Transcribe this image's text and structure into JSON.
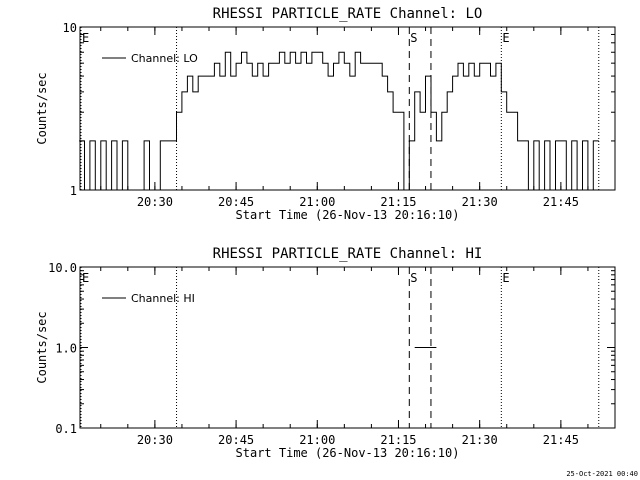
{
  "footer_date": "25-Oct-2021 00:40",
  "chart_data": [
    {
      "type": "line",
      "title": "RHESSI PARTICLE_RATE Channel: LO",
      "xlabel": "Start Time (26-Nov-13 20:16:10)",
      "ylabel": "Counts/sec",
      "yscale": "log",
      "ylim": [
        1,
        10
      ],
      "yticks": [
        "1",
        "10"
      ],
      "xticks": [
        "20:30",
        "20:45",
        "21:00",
        "21:15",
        "21:30",
        "21:45"
      ],
      "legend": {
        "position": "top-left",
        "entries": [
          "Channel: LO"
        ]
      },
      "markers": [
        {
          "label": "E",
          "time": "20:16",
          "style": "dotted"
        },
        {
          "label": "",
          "time": "20:34",
          "style": "dotted"
        },
        {
          "label": "S",
          "time": "21:17",
          "style": "dashed"
        },
        {
          "label": "",
          "time": "21:21",
          "style": "dashed"
        },
        {
          "label": "E",
          "time": "21:34",
          "style": "dotted"
        },
        {
          "label": "",
          "time": "21:52",
          "style": "dotted"
        }
      ],
      "series": [
        {
          "name": "Channel: LO",
          "values": [
            [
              "20:16",
              2
            ],
            [
              "20:17",
              1
            ],
            [
              "20:18",
              2
            ],
            [
              "20:19",
              1
            ],
            [
              "20:20",
              2
            ],
            [
              "20:21",
              1
            ],
            [
              "20:22",
              2
            ],
            [
              "20:23",
              1
            ],
            [
              "20:24",
              2
            ],
            [
              "20:25",
              1
            ],
            [
              "20:26",
              1
            ],
            [
              "20:27",
              1
            ],
            [
              "20:28",
              2
            ],
            [
              "20:29",
              1
            ],
            [
              "20:30",
              1
            ],
            [
              "20:31",
              2
            ],
            [
              "20:32",
              2
            ],
            [
              "20:33",
              2
            ],
            [
              "20:34",
              3
            ],
            [
              "20:35",
              4
            ],
            [
              "20:36",
              5
            ],
            [
              "20:37",
              4
            ],
            [
              "20:38",
              5
            ],
            [
              "20:39",
              5
            ],
            [
              "20:40",
              5
            ],
            [
              "20:41",
              6
            ],
            [
              "20:42",
              5
            ],
            [
              "20:43",
              7
            ],
            [
              "20:44",
              5
            ],
            [
              "20:45",
              6
            ],
            [
              "20:46",
              7
            ],
            [
              "20:47",
              6
            ],
            [
              "20:48",
              5
            ],
            [
              "20:49",
              6
            ],
            [
              "20:50",
              5
            ],
            [
              "20:51",
              6
            ],
            [
              "20:52",
              6
            ],
            [
              "20:53",
              7
            ],
            [
              "20:54",
              6
            ],
            [
              "20:55",
              7
            ],
            [
              "20:56",
              6
            ],
            [
              "20:57",
              7
            ],
            [
              "20:58",
              6
            ],
            [
              "20:59",
              7
            ],
            [
              "21:00",
              7
            ],
            [
              "21:01",
              6
            ],
            [
              "21:02",
              5
            ],
            [
              "21:03",
              6
            ],
            [
              "21:04",
              7
            ],
            [
              "21:05",
              6
            ],
            [
              "21:06",
              5
            ],
            [
              "21:07",
              7
            ],
            [
              "21:08",
              6
            ],
            [
              "21:09",
              6
            ],
            [
              "21:10",
              6
            ],
            [
              "21:11",
              6
            ],
            [
              "21:12",
              5
            ],
            [
              "21:13",
              4
            ],
            [
              "21:14",
              3
            ],
            [
              "21:15",
              3
            ],
            [
              "21:16",
              1
            ],
            [
              "21:17",
              2
            ],
            [
              "21:18",
              4
            ],
            [
              "21:19",
              3
            ],
            [
              "21:20",
              5
            ],
            [
              "21:21",
              3
            ],
            [
              "21:22",
              2
            ],
            [
              "21:23",
              3
            ],
            [
              "21:24",
              4
            ],
            [
              "21:25",
              5
            ],
            [
              "21:26",
              6
            ],
            [
              "21:27",
              5
            ],
            [
              "21:28",
              6
            ],
            [
              "21:29",
              5
            ],
            [
              "21:30",
              6
            ],
            [
              "21:31",
              6
            ],
            [
              "21:32",
              5
            ],
            [
              "21:33",
              6
            ],
            [
              "21:34",
              4
            ],
            [
              "21:35",
              3
            ],
            [
              "21:36",
              3
            ],
            [
              "21:37",
              2
            ],
            [
              "21:38",
              2
            ],
            [
              "21:39",
              1
            ],
            [
              "21:40",
              2
            ],
            [
              "21:41",
              1
            ],
            [
              "21:42",
              2
            ],
            [
              "21:43",
              1
            ],
            [
              "21:44",
              2
            ],
            [
              "21:45",
              2
            ],
            [
              "21:46",
              1
            ],
            [
              "21:47",
              2
            ],
            [
              "21:48",
              1
            ],
            [
              "21:49",
              2
            ],
            [
              "21:50",
              1
            ],
            [
              "21:51",
              2
            ]
          ]
        }
      ]
    },
    {
      "type": "line",
      "title": "RHESSI PARTICLE_RATE Channel: HI",
      "xlabel": "Start Time (26-Nov-13 20:16:10)",
      "ylabel": "Counts/sec",
      "yscale": "log",
      "ylim": [
        0.1,
        10
      ],
      "yticks": [
        "0.1",
        "1.0",
        "10.0"
      ],
      "xticks": [
        "20:30",
        "20:45",
        "21:00",
        "21:15",
        "21:30",
        "21:45"
      ],
      "legend": {
        "position": "top-left",
        "entries": [
          "Channel: HI"
        ]
      },
      "markers": [
        {
          "label": "E",
          "time": "20:16",
          "style": "dotted"
        },
        {
          "label": "",
          "time": "20:34",
          "style": "dotted"
        },
        {
          "label": "S",
          "time": "21:17",
          "style": "dashed"
        },
        {
          "label": "",
          "time": "21:21",
          "style": "dashed"
        },
        {
          "label": "E",
          "time": "21:34",
          "style": "dotted"
        },
        {
          "label": "",
          "time": "21:52",
          "style": "dotted"
        }
      ],
      "series": [
        {
          "name": "Channel: HI",
          "values": [
            [
              "21:18",
              1
            ],
            [
              "21:21",
              1
            ]
          ]
        }
      ]
    }
  ]
}
